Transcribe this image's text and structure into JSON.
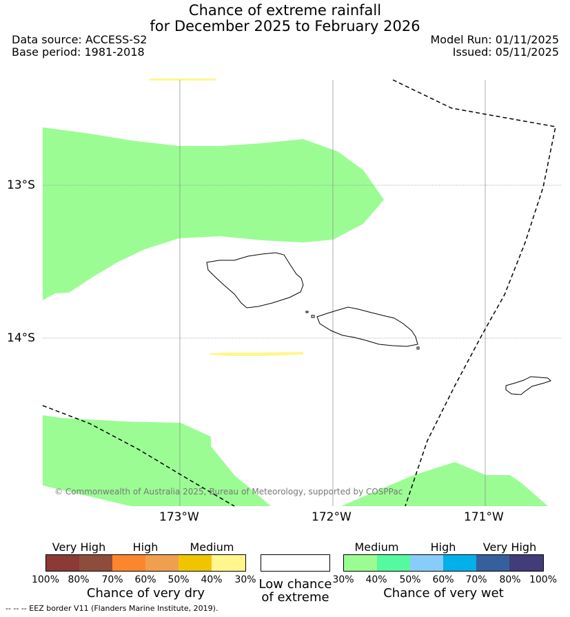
{
  "title": {
    "line1": "Chance of extreme rainfall",
    "line2": "for December 2025 to February 2026"
  },
  "info": {
    "data_source": "Data source: ACCESS-S2",
    "base_period": "Base period: 1981-2018",
    "model_run": "Model Run: 01/11/2025",
    "issued": "Issued: 05/11/2025"
  },
  "map": {
    "lat_labels": [
      "13°S",
      "14°S"
    ],
    "lon_labels": [
      "173°W",
      "172°W",
      "171°W"
    ],
    "copyright": "© Commonwealth of Australia 2025, Bureau of Meteorology, supported by COSPPac"
  },
  "legend": {
    "dry": {
      "categories": [
        "Very High",
        "High",
        "Medium"
      ],
      "ticks": [
        "100%",
        "80%",
        "70%",
        "60%",
        "50%",
        "40%",
        "30%"
      ],
      "title": "Chance of very dry",
      "colors": [
        "#8b3a36",
        "#8d4d3d",
        "#fc862c",
        "#f09f4e",
        "#f0c500",
        "#fff68e"
      ]
    },
    "low": {
      "title_line1": "Low chance",
      "title_line2": "of extreme"
    },
    "wet": {
      "categories": [
        "Medium",
        "High",
        "Very High"
      ],
      "ticks": [
        "30%",
        "40%",
        "50%",
        "60%",
        "70%",
        "80%",
        "100%"
      ],
      "title": "Chance of very wet",
      "colors": [
        "#9bfc94",
        "#55f9a0",
        "#88cdf9",
        "#02b0ea",
        "#365f9d",
        "#423c79"
      ]
    }
  },
  "footnote": "--  --  -- EEZ border V11 (Flanders Marine Institute, 2019)."
}
